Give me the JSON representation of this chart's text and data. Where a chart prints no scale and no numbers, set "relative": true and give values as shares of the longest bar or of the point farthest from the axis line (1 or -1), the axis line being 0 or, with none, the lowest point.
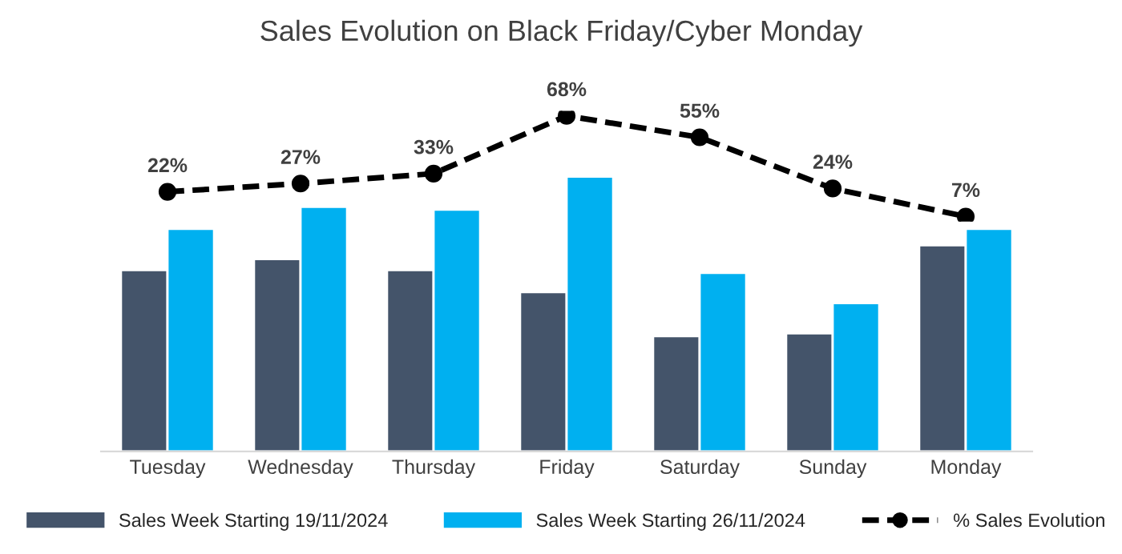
{
  "chart_data": [
    {
      "type": "bar",
      "title": "Sales Evolution on Black Friday/Cyber Monday",
      "relative": true,
      "categories": [
        "Tuesday",
        "Wednesday",
        "Thursday",
        "Friday",
        "Saturday",
        "Sunday",
        "Monday"
      ],
      "series": [
        {
          "name": "Sales Week Starting 19/11/2024",
          "color": "#44546a",
          "values": [
            0.66,
            0.7,
            0.66,
            0.58,
            0.42,
            0.43,
            0.75
          ]
        },
        {
          "name": "Sales Week Starting 26/11/2024",
          "color": "#00b0f0",
          "values": [
            0.81,
            0.89,
            0.88,
            1.0,
            0.65,
            0.54,
            0.81
          ]
        }
      ],
      "legend": "bottom"
    },
    {
      "type": "line",
      "categories": [
        null,
        null,
        null,
        null,
        null,
        null,
        null
      ],
      "tick_labels": false,
      "data_labels": true,
      "marker": "circle",
      "line_style": "dashed",
      "series": [
        {
          "name": "% Sales Evolution",
          "color": "#000000",
          "value_labels": [
            "22%",
            "27%",
            "33%",
            "68%",
            "55%",
            "24%",
            "7%"
          ],
          "values": [
            22,
            27,
            33,
            68,
            55,
            24,
            7
          ]
        }
      ],
      "legend": "bottom"
    }
  ]
}
